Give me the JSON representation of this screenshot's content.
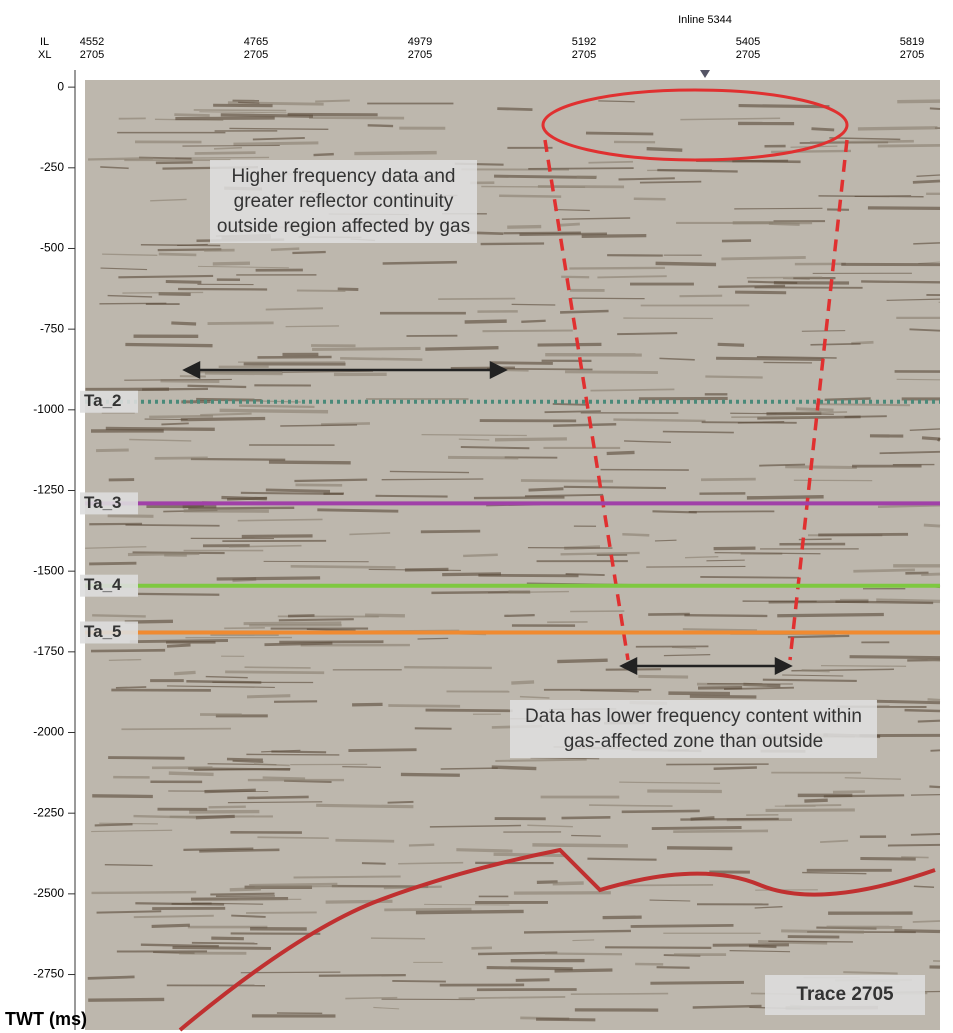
{
  "chart_data": {
    "type": "seismic-section",
    "title": "Inline 5344",
    "x_row_labels": [
      "IL",
      "XL"
    ],
    "categories": [
      "4552",
      "4765",
      "4979",
      "5192",
      "5405",
      "5819"
    ],
    "xl_labels": [
      "2705",
      "2705",
      "2705",
      "2705",
      "2705",
      "2705"
    ],
    "y_label": "TWT (ms)",
    "ylim": [
      50,
      -2925
    ],
    "yticks": [
      0,
      -250,
      -500,
      -750,
      -1000,
      -1250,
      -1500,
      -1750,
      -2000,
      -2250,
      -2500,
      -2750
    ],
    "horizons": [
      {
        "name": "Ta_2",
        "color": "#4a8a7a",
        "value": -975
      },
      {
        "name": "Ta_3",
        "color": "#a040a8",
        "value": -1290
      },
      {
        "name": "Ta_4",
        "color": "#7ec840",
        "value": -1545
      },
      {
        "name": "Ta_5",
        "color": "#f08a30",
        "value": -1690
      }
    ],
    "annotations": [
      "Higher frequency data and greater reflector continuity outside region affected by gas",
      "Data has lower frequency content within gas-affected zone than outside"
    ],
    "trace_label": "Trace 2705"
  }
}
